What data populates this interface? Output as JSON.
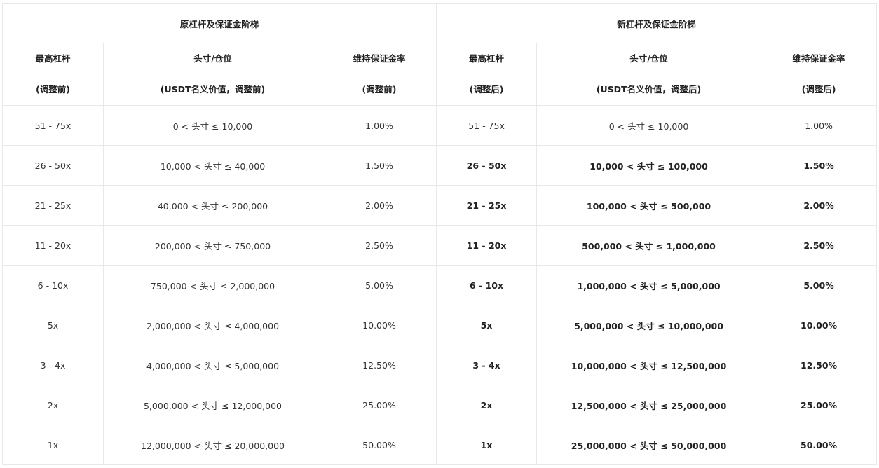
{
  "table": {
    "groups": [
      "原杠杆及保证金阶梯",
      "新杠杆及保证金阶梯"
    ],
    "headers": [
      {
        "title": "最高杠杆",
        "sub": "(调整前)"
      },
      {
        "title": "头寸/仓位",
        "sub": "(USDT名义价值，调整前)"
      },
      {
        "title": "维持保证金率",
        "sub": "(调整前)"
      },
      {
        "title": "最高杠杆",
        "sub": "(调整后)"
      },
      {
        "title": "头寸/仓位",
        "sub": "(USDT名义价值，调整后)"
      },
      {
        "title": "维持保证金率",
        "sub": "(调整后)"
      }
    ],
    "rows": [
      {
        "cells": [
          "51 - 75x",
          "0 < 头寸 ≤ 10,000",
          "1.00%",
          "51 - 75x",
          "0 < 头寸 ≤ 10,000",
          "1.00%"
        ],
        "new_bold": false
      },
      {
        "cells": [
          "26 - 50x",
          "10,000 < 头寸 ≤ 40,000",
          "1.50%",
          "26 - 50x",
          "10,000 < 头寸 ≤ 100,000",
          "1.50%"
        ],
        "new_bold": true
      },
      {
        "cells": [
          "21 - 25x",
          "40,000 < 头寸 ≤ 200,000",
          "2.00%",
          "21 - 25x",
          "100,000 < 头寸 ≤ 500,000",
          "2.00%"
        ],
        "new_bold": true
      },
      {
        "cells": [
          "11 - 20x",
          "200,000 < 头寸 ≤ 750,000",
          "2.50%",
          "11 - 20x",
          "500,000 < 头寸 ≤ 1,000,000",
          "2.50%"
        ],
        "new_bold": true
      },
      {
        "cells": [
          "6 - 10x",
          "750,000 < 头寸 ≤ 2,000,000",
          "5.00%",
          "6 - 10x",
          "1,000,000 < 头寸 ≤ 5,000,000",
          "5.00%"
        ],
        "new_bold": true
      },
      {
        "cells": [
          "5x",
          "2,000,000 < 头寸 ≤ 4,000,000",
          "10.00%",
          "5x",
          "5,000,000 < 头寸 ≤ 10,000,000",
          "10.00%"
        ],
        "new_bold": true
      },
      {
        "cells": [
          "3 - 4x",
          "4,000,000 < 头寸 ≤ 5,000,000",
          "12.50%",
          "3 - 4x",
          "10,000,000 < 头寸 ≤ 12,500,000",
          "12.50%"
        ],
        "new_bold": true
      },
      {
        "cells": [
          "2x",
          "5,000,000 < 头寸 ≤ 12,000,000",
          "25.00%",
          "2x",
          "12,500,000 < 头寸 ≤ 25,000,000",
          "25.00%"
        ],
        "new_bold": true
      },
      {
        "cells": [
          "1x",
          "12,000,000 < 头寸 ≤ 20,000,000",
          "50.00%",
          "1x",
          "25,000,000 < 头寸 ≤ 50,000,000",
          "50.00%"
        ],
        "new_bold": true
      }
    ]
  }
}
